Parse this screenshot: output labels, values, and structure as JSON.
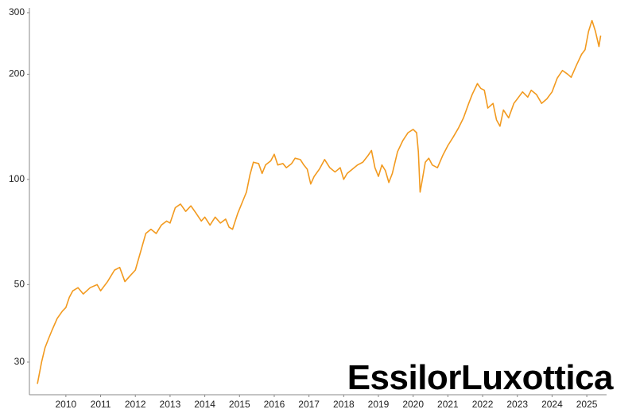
{
  "chart_data": {
    "type": "line",
    "logo": "EssilorLuxottica",
    "yscale": "log",
    "grid": false,
    "xlim": [
      2008.95,
      2025.57
    ],
    "ylim": [
      24.2,
      309.5
    ],
    "xticks": [
      2010,
      2011,
      2012,
      2013,
      2014,
      2015,
      2016,
      2017,
      2018,
      2019,
      2020,
      2021,
      2022,
      2023,
      2024,
      2025
    ],
    "yticks": [
      30,
      50,
      100,
      200,
      300
    ],
    "x": [
      2009.18,
      2009.3,
      2009.4,
      2009.5,
      2009.6,
      2009.75,
      2009.9,
      2010.0,
      2010.1,
      2010.2,
      2010.35,
      2010.5,
      2010.7,
      2010.9,
      2011.0,
      2011.2,
      2011.4,
      2011.55,
      2011.7,
      2011.85,
      2012.0,
      2012.15,
      2012.3,
      2012.45,
      2012.6,
      2012.75,
      2012.9,
      2013.0,
      2013.15,
      2013.3,
      2013.45,
      2013.6,
      2013.75,
      2013.9,
      2014.0,
      2014.15,
      2014.3,
      2014.45,
      2014.6,
      2014.7,
      2014.8,
      2014.95,
      2015.1,
      2015.2,
      2015.3,
      2015.4,
      2015.55,
      2015.65,
      2015.75,
      2015.9,
      2016.0,
      2016.1,
      2016.25,
      2016.35,
      2016.5,
      2016.6,
      2016.75,
      2016.85,
      2016.95,
      2017.05,
      2017.15,
      2017.3,
      2017.45,
      2017.6,
      2017.75,
      2017.9,
      2018.0,
      2018.1,
      2018.25,
      2018.4,
      2018.55,
      2018.7,
      2018.8,
      2018.9,
      2019.0,
      2019.1,
      2019.2,
      2019.3,
      2019.4,
      2019.55,
      2019.7,
      2019.85,
      2020.0,
      2020.1,
      2020.15,
      2020.2,
      2020.25,
      2020.35,
      2020.45,
      2020.55,
      2020.7,
      2020.85,
      2021.0,
      2021.15,
      2021.3,
      2021.45,
      2021.6,
      2021.7,
      2021.85,
      2021.95,
      2022.05,
      2022.15,
      2022.3,
      2022.4,
      2022.5,
      2022.6,
      2022.75,
      2022.9,
      2023.0,
      2023.15,
      2023.3,
      2023.4,
      2023.55,
      2023.7,
      2023.85,
      2024.0,
      2024.15,
      2024.3,
      2024.45,
      2024.55,
      2024.7,
      2024.85,
      2024.95,
      2025.05,
      2025.15,
      2025.25,
      2025.35,
      2025.4
    ],
    "series": [
      {
        "color": "#f29a1f",
        "values": [
          26,
          30,
          33,
          35,
          37,
          40,
          42,
          43,
          46,
          48,
          49,
          47,
          49,
          50,
          48,
          51,
          55,
          56,
          51,
          53,
          55,
          62,
          70,
          72,
          70,
          74,
          76,
          75,
          83,
          85,
          81,
          84,
          80,
          76,
          78,
          74,
          78,
          75,
          77,
          73,
          72,
          80,
          87,
          92,
          103,
          112,
          111,
          104,
          110,
          113,
          118,
          110,
          111,
          108,
          111,
          115,
          114,
          110,
          107,
          97,
          102,
          107,
          114,
          108,
          105,
          108,
          100,
          104,
          107,
          110,
          112,
          117,
          121,
          108,
          102,
          110,
          106,
          98,
          104,
          120,
          129,
          136,
          139,
          136,
          120,
          92,
          98,
          112,
          115,
          110,
          108,
          117,
          125,
          132,
          140,
          150,
          165,
          175,
          188,
          182,
          180,
          160,
          165,
          148,
          142,
          158,
          150,
          165,
          170,
          178,
          172,
          180,
          175,
          165,
          170,
          178,
          195,
          205,
          200,
          196,
          212,
          228,
          235,
          265,
          285,
          265,
          240,
          258
        ]
      }
    ]
  }
}
